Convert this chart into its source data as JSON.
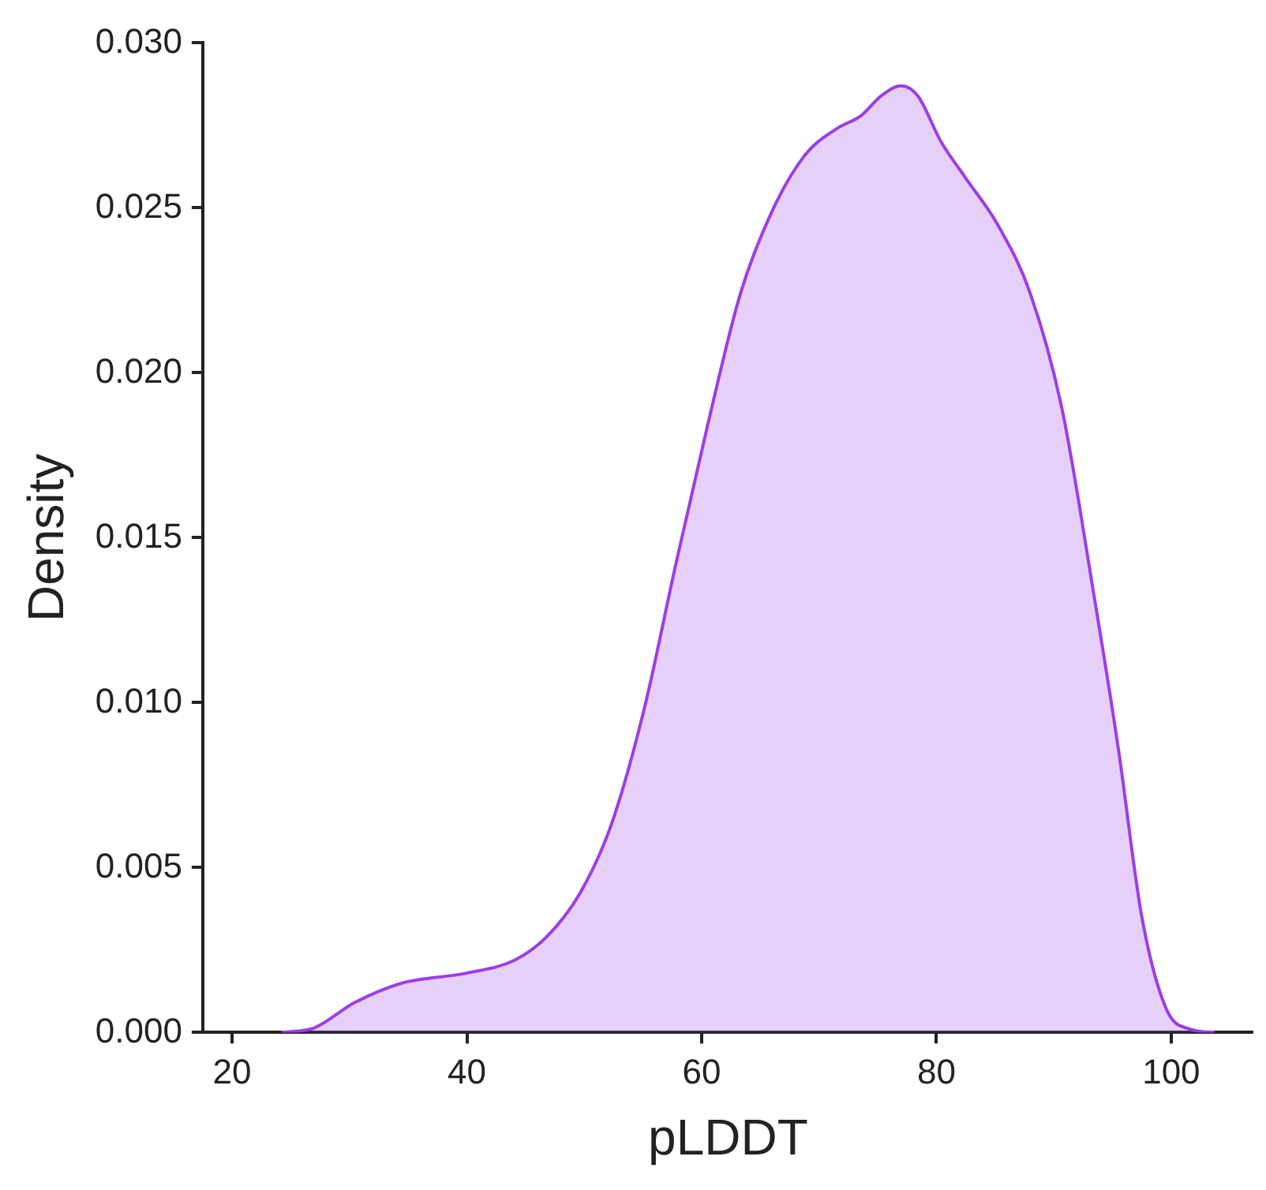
{
  "chart_data": {
    "type": "area",
    "xlabel": "pLDDT",
    "ylabel": "Density",
    "xlim": [
      17.5,
      107
    ],
    "xticks": [
      20,
      40,
      60,
      80,
      100
    ],
    "ylim": [
      0,
      0.03
    ],
    "yticks": [
      {
        "value": 0,
        "label": "0.000"
      },
      {
        "value": 0.005,
        "label": "0.005"
      },
      {
        "value": 0.01,
        "label": "0.010"
      },
      {
        "value": 0.015,
        "label": "0.015"
      },
      {
        "value": 0.02,
        "label": "0.020"
      },
      {
        "value": 0.025,
        "label": "0.025"
      },
      {
        "value": 0.03,
        "label": "0.030"
      }
    ],
    "grid": false,
    "legend": false,
    "series": [
      {
        "color": "#9b3ee8",
        "x": [
          24.2,
          27,
          30.4,
          34.5,
          40,
          44.1,
          46.8,
          49.6,
          52.3,
          55.1,
          57.8,
          60.5,
          63.3,
          66,
          68.8,
          71.5,
          73.6,
          75.3,
          77,
          78.4,
          80.4,
          82.5,
          85.2,
          88,
          90.7,
          93.4,
          95.5,
          97.5,
          99.6,
          101.6,
          103.7
        ],
        "values": [
          0,
          0.00014,
          0.0009,
          0.0015,
          0.0018,
          0.0022,
          0.0029,
          0.0042,
          0.0063,
          0.0098,
          0.0142,
          0.0184,
          0.0224,
          0.0249,
          0.0266,
          0.0274,
          0.0278,
          0.0284,
          0.0287,
          0.0284,
          0.027,
          0.0259,
          0.0245,
          0.0224,
          0.0189,
          0.0133,
          0.0086,
          0.0035,
          0.0007,
          0.0001,
          0
        ]
      }
    ]
  }
}
